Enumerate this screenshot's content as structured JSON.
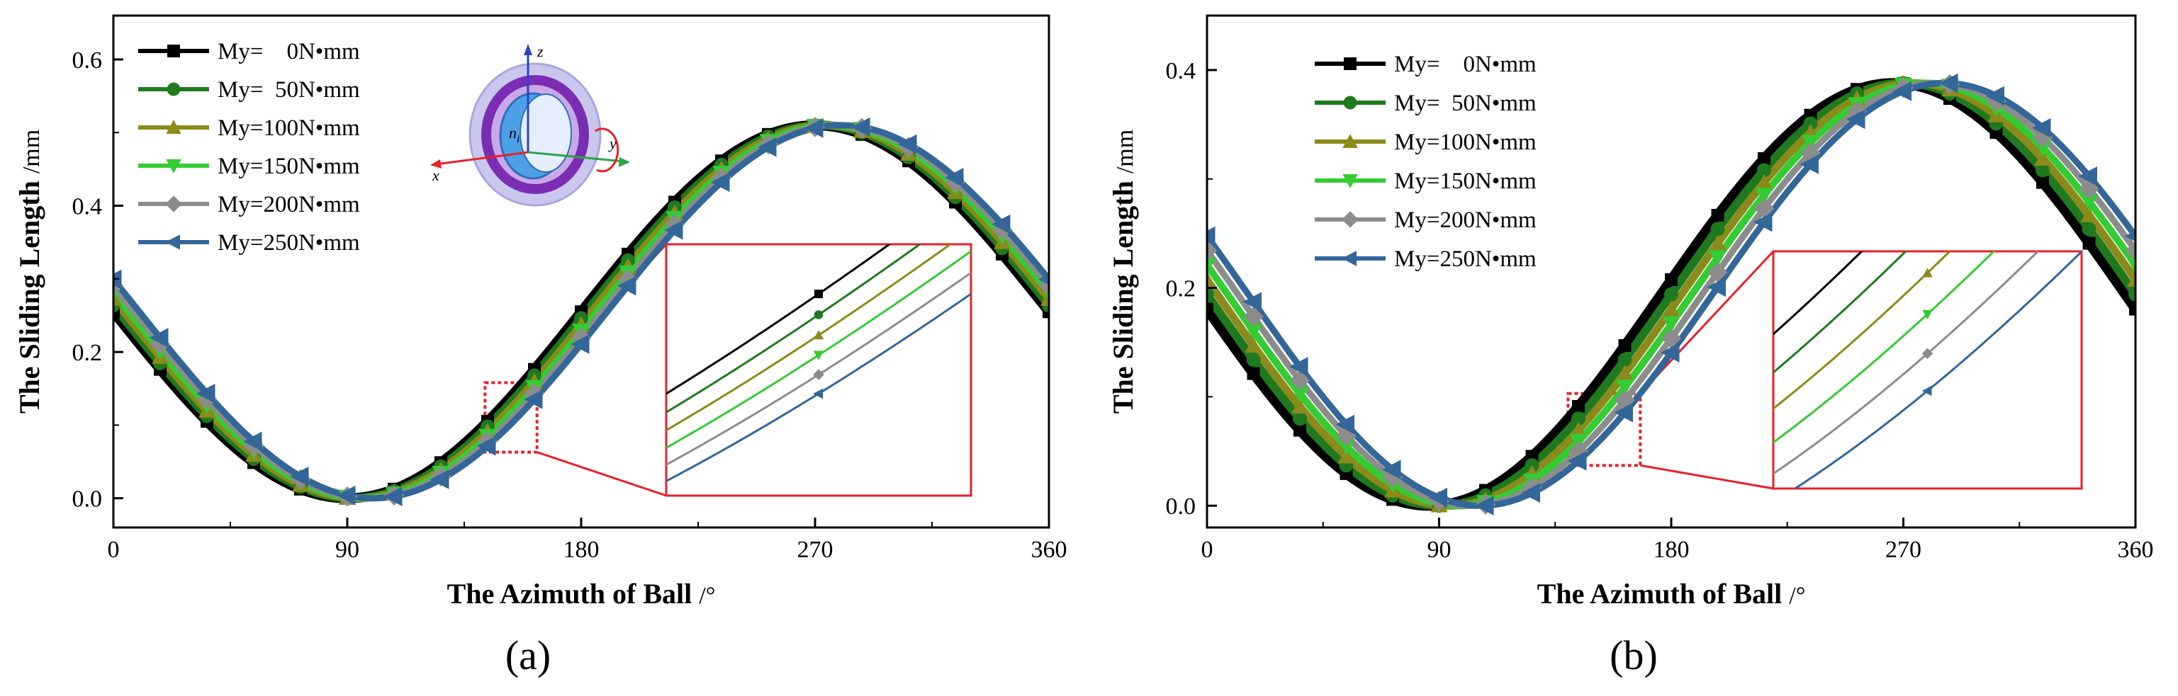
{
  "colors": {
    "series": [
      "#000000",
      "#1f7a1f",
      "#8c8a1a",
      "#33cc33",
      "#8c8c8c",
      "#336699"
    ],
    "zoom_box": "#e8202a",
    "bearing_outer": "#c9c7ee",
    "bearing_inner": "#7a2db3",
    "bearing_race": "#4d9fe6",
    "axis_x": "#e8202a",
    "axis_y": "#2aa34a",
    "axis_z": "#2a43c7"
  },
  "inset_axes": {
    "x_label": "x",
    "y_label": "y",
    "z_label": "z",
    "n_label": "n",
    "n_sub": "i"
  },
  "chart_data": [
    {
      "id": "a",
      "type": "line",
      "panel_label": "(a)",
      "xlabel": "The Azimuth of Ball",
      "xunit": "/°",
      "ylabel": "The Sliding Length",
      "yunit": "/mm",
      "xlim": [
        0,
        360
      ],
      "ylim": [
        -0.04,
        0.66
      ],
      "xticks": [
        0,
        90,
        180,
        270,
        360
      ],
      "yticks": [
        0.0,
        0.2,
        0.4,
        0.6
      ],
      "ytick_labels": [
        "0.0",
        "0.2",
        "0.4",
        "0.6"
      ],
      "legend_position": "top-left",
      "curve_model": "base + amplitude * sin(x - phase)",
      "series": [
        {
          "name": "My=    0N•mm",
          "marker": "square",
          "base": 0.255,
          "amplitude": 0.255,
          "phase": 180
        },
        {
          "name": "My=  50N•mm",
          "marker": "circle",
          "base": 0.255,
          "amplitude": 0.255,
          "phase": 182
        },
        {
          "name": "My=100N•mm",
          "marker": "triangle-up",
          "base": 0.255,
          "amplitude": 0.255,
          "phase": 184
        },
        {
          "name": "My=150N•mm",
          "marker": "triangle-down",
          "base": 0.255,
          "amplitude": 0.255,
          "phase": 186
        },
        {
          "name": "My=200N•mm",
          "marker": "diamond",
          "base": 0.255,
          "amplitude": 0.255,
          "phase": 188
        },
        {
          "name": "My=250N•mm",
          "marker": "triangle-left",
          "base": 0.255,
          "amplitude": 0.255,
          "phase": 190
        }
      ],
      "zoom_region": {
        "xlim": [
          143,
          163
        ],
        "ylim": [
          0.063,
          0.158
        ]
      }
    },
    {
      "id": "b",
      "type": "line",
      "panel_label": "(b)",
      "xlabel": "The Azimuth of Ball",
      "xunit": "/°",
      "ylabel": "The Sliding Length",
      "yunit": "/mm",
      "xlim": [
        0,
        360
      ],
      "ylim": [
        -0.02,
        0.45
      ],
      "xticks": [
        0,
        90,
        180,
        270,
        360
      ],
      "yticks": [
        0.0,
        0.2,
        0.4
      ],
      "ytick_labels": [
        "0.0",
        "0.2",
        "0.4"
      ],
      "legend_position": "top-left",
      "curve_model": "base + amplitude * sin(x - phase)",
      "series": [
        {
          "name": "My=    0N•mm",
          "marker": "square",
          "base": 0.194,
          "amplitude": 0.194,
          "phase": 176
        },
        {
          "name": "My=  50N•mm",
          "marker": "circle",
          "base": 0.194,
          "amplitude": 0.194,
          "phase": 180
        },
        {
          "name": "My=100N•mm",
          "marker": "triangle-up",
          "base": 0.194,
          "amplitude": 0.194,
          "phase": 184
        },
        {
          "name": "My=150N•mm",
          "marker": "triangle-down",
          "base": 0.194,
          "amplitude": 0.194,
          "phase": 188
        },
        {
          "name": "My=200N•mm",
          "marker": "diamond",
          "base": 0.194,
          "amplitude": 0.194,
          "phase": 192
        },
        {
          "name": "My=250N•mm",
          "marker": "triangle-left",
          "base": 0.194,
          "amplitude": 0.194,
          "phase": 196
        }
      ],
      "zoom_region": {
        "xlim": [
          140,
          168
        ],
        "ylim": [
          0.037,
          0.103
        ]
      }
    }
  ]
}
